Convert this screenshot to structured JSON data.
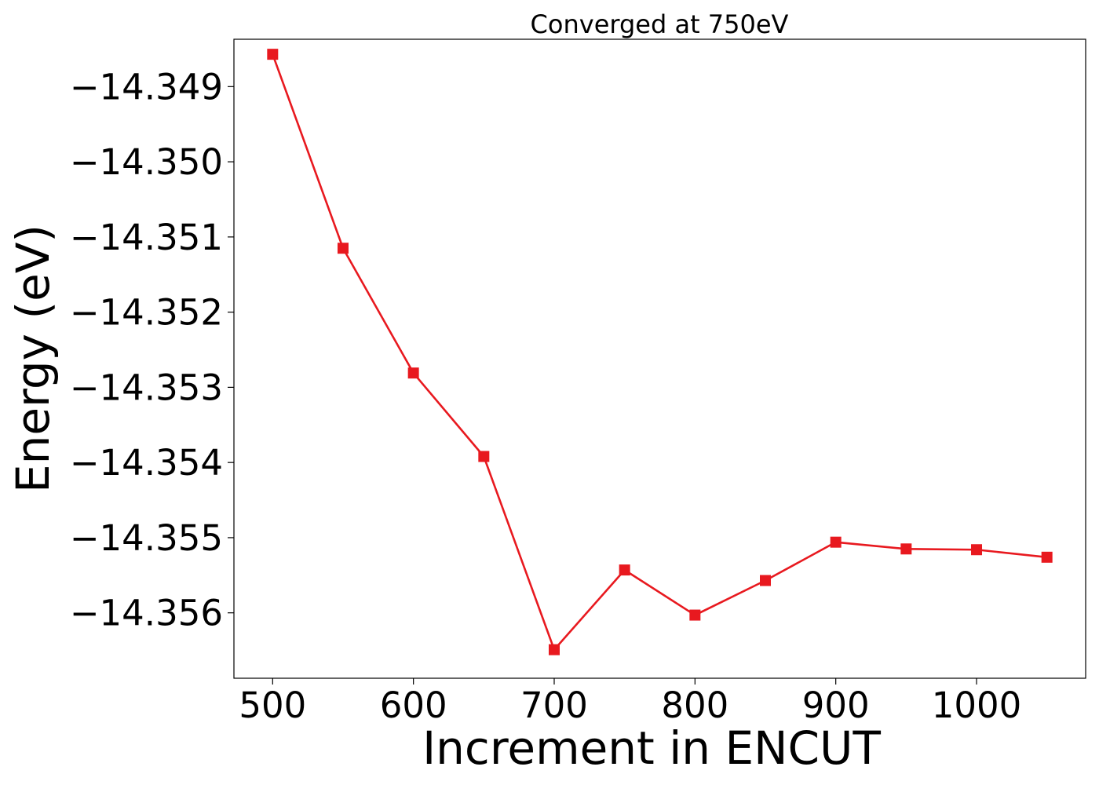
{
  "chart_data": {
    "type": "line",
    "title": "Converged at 750eV",
    "xlabel": "Increment in ENCUT",
    "ylabel": "Energy (eV)",
    "xlim": [
      472.5,
      1077.5
    ],
    "ylim": [
      -14.35687,
      -14.34837
    ],
    "xticks": [
      500,
      600,
      700,
      800,
      900,
      1000
    ],
    "yticks": [
      -14.349,
      -14.35,
      -14.351,
      -14.352,
      -14.353,
      -14.354,
      -14.355,
      -14.356
    ],
    "xtick_labels": [
      "500",
      "600",
      "700",
      "800",
      "900",
      "1000"
    ],
    "ytick_labels": [
      "−14.349",
      "−14.350",
      "−14.351",
      "−14.352",
      "−14.353",
      "−14.354",
      "−14.355",
      "−14.356"
    ],
    "grid": false,
    "series": [
      {
        "marker": "square",
        "color": "#e8191f",
        "x": [
          500,
          550,
          600,
          650,
          700,
          750,
          800,
          850,
          900,
          950,
          1000,
          1050
        ],
        "y": [
          -14.34857,
          -14.35115,
          -14.35281,
          -14.35392,
          -14.35649,
          -14.35543,
          -14.35603,
          -14.35557,
          -14.35506,
          -14.35515,
          -14.35516,
          -14.35526
        ]
      }
    ]
  }
}
